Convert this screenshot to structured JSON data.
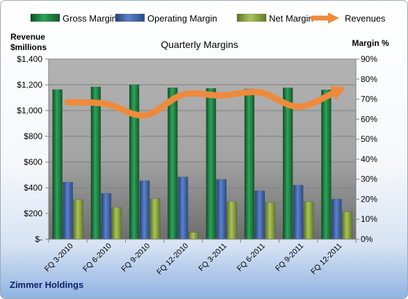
{
  "footer": {
    "company": "Zimmer Holdings"
  },
  "chart_data": {
    "type": "bar",
    "title": "Quarterly Margins",
    "ylabel_left_line1": "Revenue",
    "ylabel_left_line2": "$millions",
    "ylabel_right": "Margin %",
    "categories": [
      "FQ 3-2010",
      "FQ 6-2010",
      "FQ 9-2010",
      "FQ 12-2010",
      "FQ 3-2011",
      "FQ 6-2011",
      "FQ 9-2011",
      "FQ 12-2011"
    ],
    "ylim_left": [
      0,
      1400
    ],
    "ylim_right": [
      0,
      90
    ],
    "left_ticks": [
      {
        "value": 0,
        "label": "$-"
      },
      {
        "value": 200,
        "label": "$200"
      },
      {
        "value": 400,
        "label": "$400"
      },
      {
        "value": 600,
        "label": "$600"
      },
      {
        "value": 800,
        "label": "$800"
      },
      {
        "value": 1000,
        "label": "$1,000"
      },
      {
        "value": 1200,
        "label": "$1,200"
      },
      {
        "value": 1400,
        "label": "$1,400"
      }
    ],
    "right_ticks": [
      {
        "value": 0,
        "label": "0%"
      },
      {
        "value": 10,
        "label": "10%"
      },
      {
        "value": 20,
        "label": "20%"
      },
      {
        "value": 30,
        "label": "30%"
      },
      {
        "value": 40,
        "label": "40%"
      },
      {
        "value": 50,
        "label": "50%"
      },
      {
        "value": 60,
        "label": "60%"
      },
      {
        "value": 70,
        "label": "70%"
      },
      {
        "value": 80,
        "label": "80%"
      },
      {
        "value": 90,
        "label": "90%"
      }
    ],
    "series": [
      {
        "name": "Gross Margin",
        "kind": "bar",
        "axis": "right",
        "color": "#1a7a3c",
        "values": [
          74.8,
          76.1,
          77.2,
          75.7,
          75.4,
          75.1,
          75.7,
          74.6
        ]
      },
      {
        "name": "Operating Margin",
        "kind": "bar",
        "axis": "right",
        "color": "#3f63a8",
        "values": [
          28.5,
          22.9,
          29.2,
          31.1,
          29.9,
          24.2,
          27.0,
          20.0
        ]
      },
      {
        "name": "Net Margin",
        "kind": "bar",
        "axis": "right",
        "color": "#8aa63c",
        "values": [
          19.8,
          15.9,
          20.2,
          3.4,
          18.8,
          18.2,
          18.7,
          13.7
        ]
      },
      {
        "name": "Revenues",
        "kind": "line",
        "axis": "left",
        "color": "#ee8a3c",
        "values": [
          1065,
          1052,
          963,
          1124,
          1117,
          1141,
          1030,
          1150
        ]
      }
    ],
    "legend_position": "top",
    "grid": true
  }
}
